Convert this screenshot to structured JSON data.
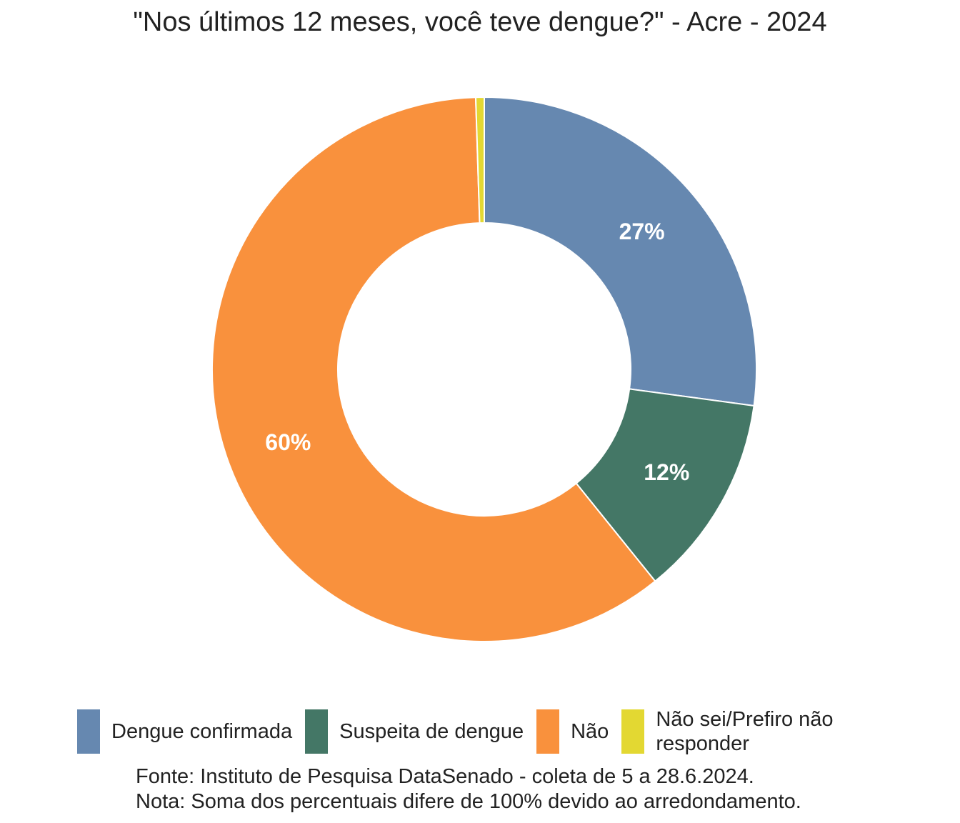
{
  "chart_data": {
    "type": "pie",
    "variant": "donut",
    "title": "\"Nos últimos 12 meses, você teve dengue?\" - Acre - 2024",
    "slices": [
      {
        "name": "Dengue confirmada",
        "value": 27,
        "label": "27%",
        "color": "#6688B0"
      },
      {
        "name": "Suspeita de dengue",
        "value": 12,
        "label": "12%",
        "color": "#447766"
      },
      {
        "name": "Não",
        "value": 60,
        "label": "60%",
        "color": "#F9913D"
      },
      {
        "name": "Não sei/Prefiro não responder",
        "value": 0.5,
        "label": "",
        "color": "#E3D832"
      }
    ],
    "legend_position": "bottom",
    "legend": [
      {
        "label": "Dengue confirmada",
        "color": "#6688B0"
      },
      {
        "label": "Suspeita de dengue",
        "color": "#447766"
      },
      {
        "label": "Não",
        "color": "#F9913D"
      },
      {
        "label": "Não sei/Prefiro não responder",
        "color": "#E3D832"
      }
    ],
    "source": "Fonte: Instituto de Pesquisa DataSenado - coleta de 5 a 28.6.2024.",
    "note": "Nota: Soma dos percentuais difere de 100% devido ao arredondamento."
  }
}
